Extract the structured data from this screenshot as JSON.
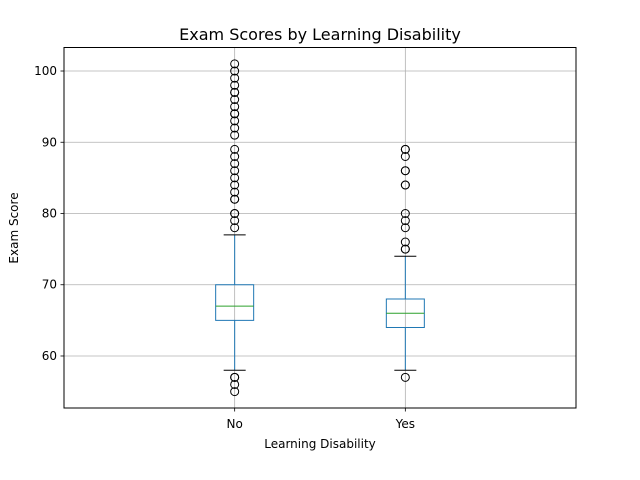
{
  "chart_data": {
    "type": "box",
    "title": "Exam Scores by Learning Disability",
    "xlabel": "Learning Disability",
    "ylabel": "Exam Score",
    "categories": [
      "No",
      "Yes"
    ],
    "ylim": [
      52.7,
      103.3
    ],
    "yticks": [
      60,
      70,
      80,
      90,
      100
    ],
    "grid": true,
    "colors": {
      "box": "#1f77b4",
      "median": "#2ca02c",
      "whisker": "#1f77b4",
      "cap": "#000000",
      "outlier": "#000000",
      "grid": "#b0b0b0"
    },
    "boxes": [
      {
        "category": "No",
        "whisker_low": 58,
        "q1": 65,
        "median": 67,
        "q3": 70,
        "whisker_high": 77,
        "outliers": [
          55,
          56,
          57,
          57,
          78,
          79,
          80,
          80,
          82,
          82,
          83,
          84,
          85,
          86,
          87,
          88,
          89,
          91,
          92,
          93,
          94,
          94,
          95,
          96,
          97,
          97,
          98,
          99,
          100,
          101
        ]
      },
      {
        "category": "Yes",
        "whisker_low": 58,
        "q1": 64,
        "median": 66,
        "q3": 68,
        "whisker_high": 74,
        "outliers": [
          57,
          75,
          75,
          76,
          78,
          79,
          80,
          84,
          84,
          86,
          86,
          88,
          89,
          89
        ]
      }
    ]
  }
}
